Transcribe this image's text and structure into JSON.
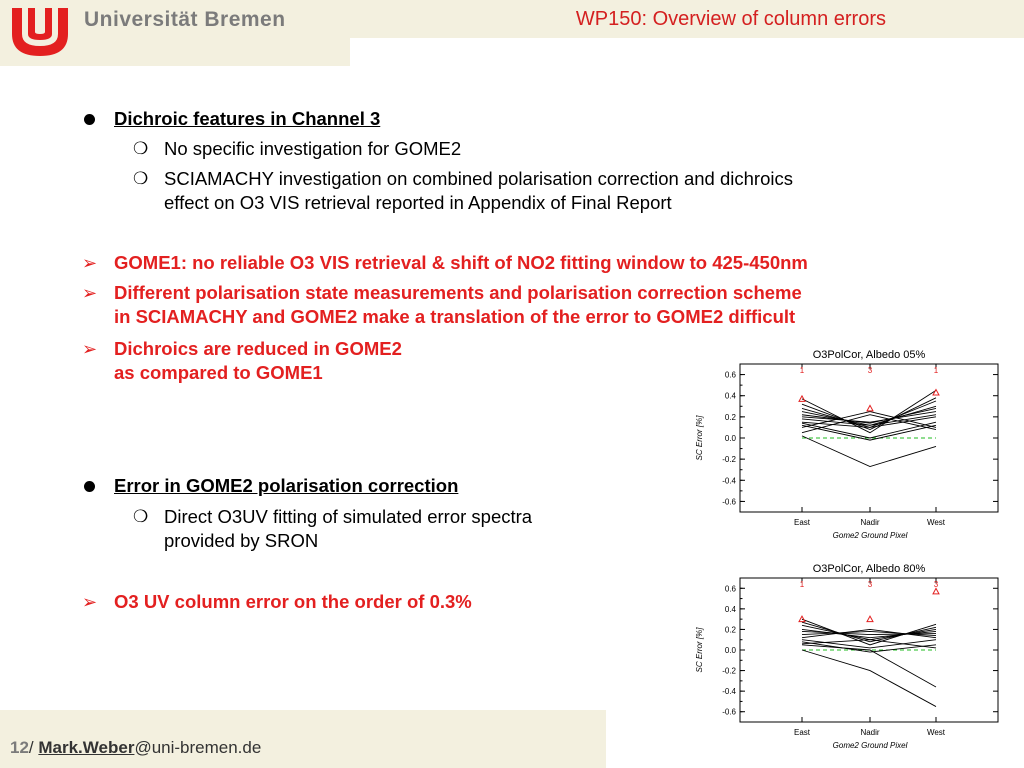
{
  "header": {
    "university": "Universität Bremen",
    "title": "WP150: Overview of column errors"
  },
  "bullets": {
    "b1_title": "Dichroic features in Channel 3",
    "b1_sub1": "No specific investigation for GOME2",
    "b1_sub2_l1": "SCIAMACHY investigation on combined polarisation correction and dichroics",
    "b1_sub2_l2": "effect on O3 VIS retrieval reported in Appendix of Final Report",
    "a1": "GOME1: no reliable O3 VIS retrieval  & shift of NO2 fitting window to 425-450nm",
    "a2_l1": "Different polarisation state measurements and polarisation correction scheme",
    "a2_l2": "in SCIAMACHY and GOME2 make a translation of the error to GOME2 difficult",
    "a3_l1": "Dichroics are reduced in GOME2",
    "a3_l2": "as compared to GOME1",
    "b2_title": "Error in GOME2 polarisation correction",
    "b2_sub1_l1": "Direct O3UV fitting of simulated error spectra",
    "b2_sub1_l2": "provided by SRON",
    "a4": "O3 UV column error on the order of 0.3%"
  },
  "footer": {
    "page": "12",
    "sep": "/ ",
    "name": "Mark.Weber",
    "domain": "@uni-bremen.de"
  },
  "colors": {
    "title_red": "#d42020",
    "bullet_red": "#e32020",
    "band": "#f3f0df",
    "zero_line": "#22bb22"
  },
  "chart_data": [
    {
      "type": "line",
      "title": "O3PolCor, Albedo 05%",
      "xlabel": "Gome2 Ground Pixel",
      "ylabel": "SC Error [%]",
      "categories": [
        "East",
        "Nadir",
        "West"
      ],
      "ylim": [
        -0.7,
        0.7
      ],
      "yticks": [
        "0.6",
        "0.4",
        "0.2",
        "0.0",
        "-0.2",
        "-0.4",
        "-0.6"
      ],
      "top_labels": [
        "1",
        "3",
        "1"
      ],
      "zero_line": true,
      "series": [
        {
          "values": [
            0.37,
            0.05,
            0.45
          ]
        },
        {
          "values": [
            0.32,
            0.08,
            0.38
          ]
        },
        {
          "values": [
            0.28,
            0.1,
            0.35
          ]
        },
        {
          "values": [
            0.25,
            0.12,
            0.3
          ]
        },
        {
          "values": [
            0.22,
            0.14,
            0.28
          ]
        },
        {
          "values": [
            0.2,
            0.15,
            0.25
          ]
        },
        {
          "values": [
            0.18,
            0.12,
            0.22
          ]
        },
        {
          "values": [
            0.15,
            0.1,
            0.2
          ]
        },
        {
          "values": [
            0.14,
            0.0,
            0.15
          ]
        },
        {
          "values": [
            0.12,
            -0.02,
            0.12
          ]
        },
        {
          "values": [
            0.1,
            0.25,
            0.1
          ]
        },
        {
          "values": [
            0.05,
            0.22,
            0.08
          ]
        },
        {
          "values": [
            0.02,
            -0.27,
            -0.08
          ]
        }
      ],
      "markers": [
        {
          "x": 0,
          "y": 0.37
        },
        {
          "x": 1,
          "y": 0.28
        },
        {
          "x": 2,
          "y": 0.43
        }
      ]
    },
    {
      "type": "line",
      "title": "O3PolCor, Albedo 80%",
      "xlabel": "Gome2 Ground Pixel",
      "ylabel": "SC Error [%]",
      "categories": [
        "East",
        "Nadir",
        "West"
      ],
      "ylim": [
        -0.7,
        0.7
      ],
      "yticks": [
        "0.6",
        "0.4",
        "0.2",
        "0.0",
        "-0.2",
        "-0.4",
        "-0.6"
      ],
      "top_labels": [
        "1",
        "3",
        "3"
      ],
      "zero_line": true,
      "series": [
        {
          "values": [
            0.3,
            0.05,
            0.25
          ]
        },
        {
          "values": [
            0.27,
            0.08,
            0.22
          ]
        },
        {
          "values": [
            0.24,
            0.1,
            0.2
          ]
        },
        {
          "values": [
            0.2,
            0.12,
            0.18
          ]
        },
        {
          "values": [
            0.18,
            0.15,
            0.16
          ]
        },
        {
          "values": [
            0.15,
            0.18,
            0.14
          ]
        },
        {
          "values": [
            0.12,
            0.2,
            0.12
          ]
        },
        {
          "values": [
            0.1,
            0.02,
            0.1
          ]
        },
        {
          "values": [
            0.08,
            -0.02,
            0.05
          ]
        },
        {
          "values": [
            0.06,
            0.1,
            0.02
          ]
        },
        {
          "values": [
            0.05,
            0.0,
            -0.36
          ]
        },
        {
          "values": [
            0.0,
            -0.2,
            -0.55
          ]
        }
      ],
      "markers": [
        {
          "x": 0,
          "y": 0.3
        },
        {
          "x": 1,
          "y": 0.3
        },
        {
          "x": 2,
          "y": 0.57
        }
      ]
    }
  ]
}
